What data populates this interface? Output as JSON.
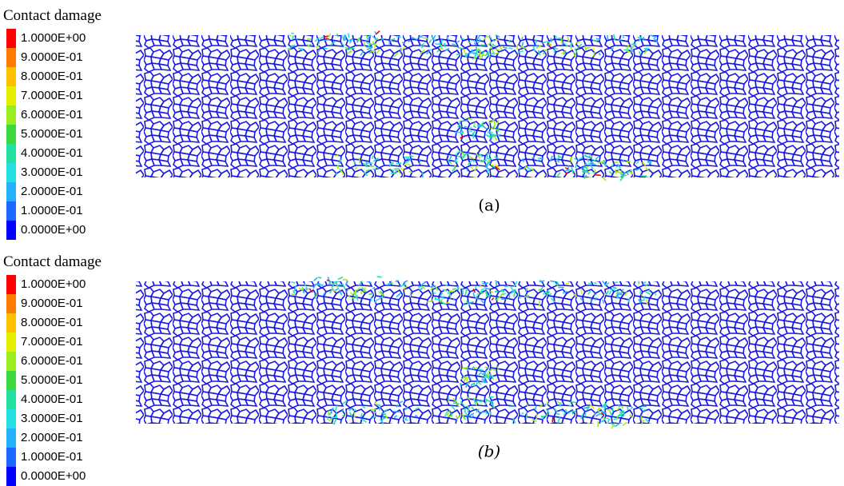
{
  "panels": [
    {
      "legend_title": "Contact damage",
      "legend_labels": [
        "1.0000E+00",
        "9.0000E-01",
        "8.0000E-01",
        "7.0000E-01",
        "6.0000E-01",
        "5.0000E-01",
        "4.0000E-01",
        "3.0000E-01",
        "2.0000E-01",
        "1.0000E-01",
        "0.0000E+00"
      ],
      "legend_colors": [
        "#ff0000",
        "#ff7a00",
        "#ffc000",
        "#e5ee00",
        "#9aee20",
        "#3ad83a",
        "#22e0a0",
        "#22e0e0",
        "#22b0ff",
        "#1a6aff",
        "#0000ff"
      ],
      "caption": "(a)"
    },
    {
      "legend_title": "Contact damage",
      "legend_labels": [
        "1.0000E+00",
        "9.0000E-01",
        "8.0000E-01",
        "7.0000E-01",
        "6.0000E-01",
        "5.0000E-01",
        "4.0000E-01",
        "3.0000E-01",
        "2.0000E-01",
        "1.0000E-01",
        "0.0000E+00"
      ],
      "legend_colors": [
        "#ff0000",
        "#ff7a00",
        "#ffc000",
        "#e5ee00",
        "#9aee20",
        "#3ad83a",
        "#22e0a0",
        "#22e0e0",
        "#22b0ff",
        "#1a6aff",
        "#0000ff"
      ],
      "caption": "(b)"
    }
  ]
}
